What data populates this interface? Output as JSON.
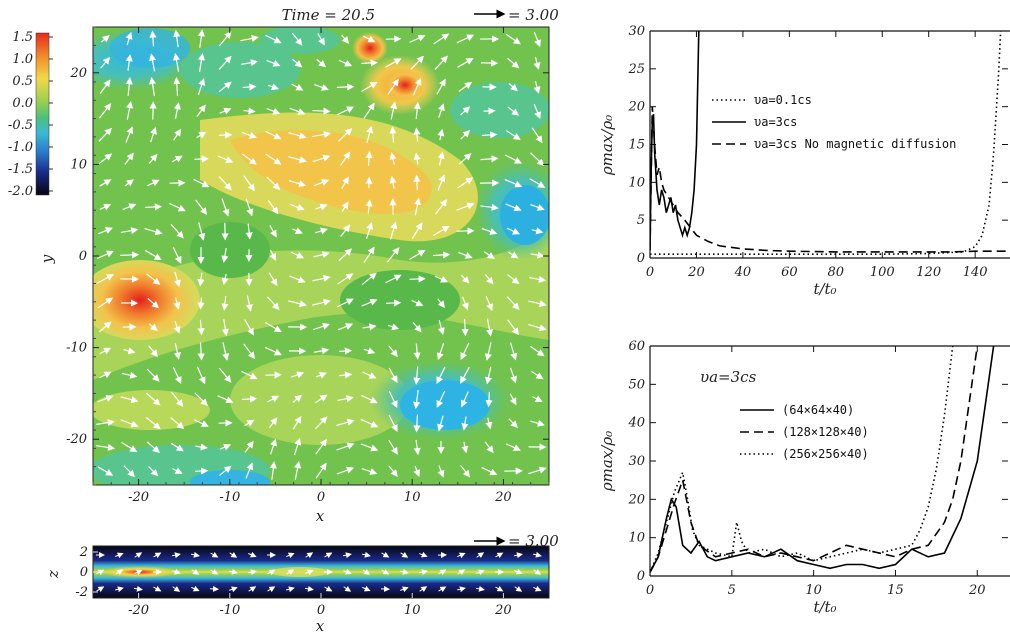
{
  "map_panel": {
    "time_label": "Time = 20.5",
    "vector_label": "= 3.00",
    "x_ticks": [
      "-20",
      "-10",
      "0",
      "10",
      "20"
    ],
    "y_ticks": [
      "20",
      "10",
      "0",
      "-10",
      "-20"
    ],
    "xlabel": "x",
    "ylabel": "y",
    "colorbar_ticks": [
      "1.5",
      "1.0",
      "0.5",
      "0.0",
      "-0.5",
      "-1.0",
      "-1.5",
      "-2.0"
    ]
  },
  "slice_panel": {
    "vector_label": "= 3.00",
    "x_ticks": [
      "-20",
      "-10",
      "0",
      "10",
      "20"
    ],
    "z_ticks": [
      "2",
      "0",
      "-2"
    ],
    "xlabel": "x",
    "ylabel": "z"
  },
  "chart_data": [
    {
      "type": "line",
      "xlabel": "t/t₀",
      "ylabel": "ρmax/ρ₀",
      "xlim": [
        0,
        155
      ],
      "ylim": [
        0,
        30
      ],
      "x_ticks": [
        0,
        20,
        40,
        60,
        80,
        100,
        120,
        140
      ],
      "y_ticks": [
        0,
        5,
        10,
        15,
        20,
        25,
        30
      ],
      "series": [
        {
          "name": "υa=0.1cs",
          "style": "dotted",
          "x": [
            0,
            20,
            40,
            60,
            80,
            100,
            120,
            135,
            140,
            143,
            146,
            148,
            150,
            151
          ],
          "y": [
            0.5,
            0.5,
            0.5,
            0.5,
            0.5,
            0.5,
            0.6,
            0.8,
            1.5,
            3,
            7,
            14,
            24,
            30
          ]
        },
        {
          "name": "υa=3cs",
          "style": "solid",
          "x": [
            0,
            0.5,
            1,
            1.5,
            2,
            3,
            4,
            5,
            6,
            7,
            8,
            9,
            10,
            11,
            12,
            13,
            14,
            15,
            16,
            17,
            18,
            19,
            20,
            21
          ],
          "y": [
            1,
            12,
            18,
            19,
            14,
            9,
            7,
            9,
            8,
            6,
            7,
            8,
            6,
            7,
            5,
            4,
            3,
            4,
            3,
            4,
            6,
            9,
            15,
            30
          ]
        },
        {
          "name": "υa=3cs No magnetic diffusion",
          "style": "dashed",
          "x": [
            0,
            1,
            2,
            3,
            4,
            5,
            6,
            8,
            10,
            12,
            15,
            20,
            25,
            30,
            40,
            50,
            60,
            80,
            100,
            120,
            130,
            140,
            150,
            155
          ],
          "y": [
            1,
            20,
            15,
            11,
            12,
            10,
            9,
            8,
            7,
            6,
            5,
            3,
            2.2,
            1.6,
            1.2,
            1.0,
            0.9,
            0.8,
            0.8,
            0.8,
            0.8,
            0.9,
            0.9,
            0.9
          ]
        }
      ]
    },
    {
      "type": "line",
      "annotation": "υa=3cs",
      "xlabel": "t/t₀",
      "ylabel": "ρmax/ρ₀",
      "xlim": [
        0,
        22
      ],
      "ylim": [
        0,
        60
      ],
      "x_ticks": [
        0,
        5,
        10,
        15,
        20
      ],
      "y_ticks": [
        0,
        10,
        20,
        30,
        40,
        50,
        60
      ],
      "series": [
        {
          "name": "(64×64×40)",
          "style": "solid",
          "x": [
            0,
            0.5,
            1,
            1.3,
            1.6,
            2,
            2.5,
            3,
            3.5,
            4,
            5,
            6,
            7,
            8,
            9,
            10,
            11,
            12,
            13,
            14,
            15,
            16,
            17,
            18,
            19,
            20,
            20.5,
            21
          ],
          "y": [
            1,
            5,
            15,
            20,
            18,
            8,
            6,
            9,
            5,
            4,
            5,
            6,
            5,
            7,
            4,
            3,
            2,
            3,
            3,
            2,
            3,
            7,
            5,
            6,
            15,
            30,
            45,
            60
          ]
        },
        {
          "name": "(128×128×40)",
          "style": "dashed",
          "x": [
            0,
            0.5,
            1,
            1.5,
            2,
            2.5,
            3,
            4,
            5,
            6,
            7,
            8,
            9,
            10,
            11,
            12,
            13,
            14,
            15,
            16,
            17,
            18,
            18.5,
            19,
            19.5,
            20
          ],
          "y": [
            1,
            5,
            12,
            19,
            25,
            14,
            8,
            5,
            6,
            7,
            5,
            6,
            5,
            4,
            6,
            8,
            7,
            6,
            5,
            7,
            8,
            14,
            20,
            30,
            45,
            60
          ]
        },
        {
          "name": "(256×256×40)",
          "style": "dotted",
          "x": [
            0,
            0.5,
            1,
            1.5,
            2,
            2.3,
            2.6,
            3,
            4,
            5,
            5.3,
            5.6,
            6,
            7,
            8,
            9,
            10,
            11,
            12,
            13,
            14,
            15,
            16,
            16.5,
            17,
            17.5,
            18,
            18.5
          ],
          "y": [
            1,
            6,
            14,
            22,
            27,
            20,
            12,
            8,
            6,
            5,
            14,
            9,
            6,
            7,
            5,
            6,
            4,
            5,
            6,
            7,
            6,
            7,
            8,
            12,
            18,
            28,
            42,
            60
          ]
        }
      ]
    }
  ]
}
